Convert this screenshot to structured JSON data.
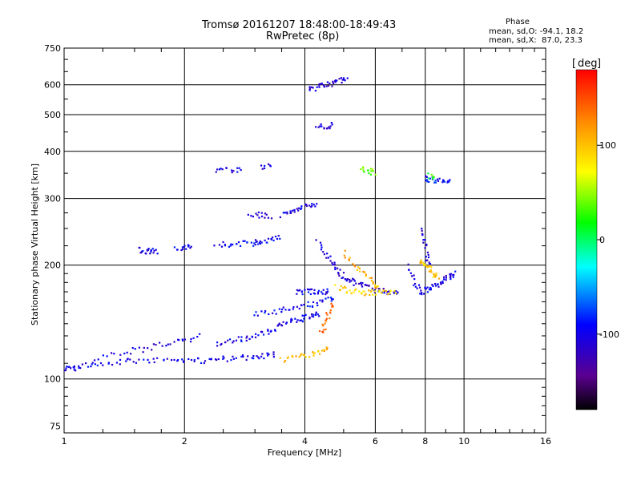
{
  "header": {
    "title_line1": "Tromsø 20161207 18:48:00-18:49:43",
    "title_line2": "RwPretec (8p)",
    "phase_heading": "Phase",
    "phase_line_o": "mean, sd,O: -94.1, 18.2",
    "phase_line_x": "mean, sd,X:  87.0, 23.3"
  },
  "colorbar": {
    "unit_label": "deg",
    "min": -180,
    "max": 180,
    "tick_labels": [
      "100",
      "0",
      "-100"
    ],
    "tick_values": [
      100,
      0,
      -100
    ]
  },
  "chart_data": {
    "type": "scatter",
    "xlabel": "Frequency [MHz]",
    "ylabel": "Stationary phase Virtual Height [km]",
    "x_scale": "log",
    "y_scale": "log",
    "xlim": [
      1,
      16
    ],
    "ylim": [
      72,
      750
    ],
    "x_ticks": [
      1,
      2,
      4,
      6,
      8,
      10,
      16
    ],
    "x_tick_labels": [
      "1",
      "2",
      "4",
      "6",
      "8",
      "10",
      "16"
    ],
    "y_ticks": [
      75,
      100,
      200,
      300,
      400,
      500,
      600,
      750
    ],
    "y_tick_labels": [
      "75",
      "100",
      "200",
      "300",
      "400",
      "500",
      "600",
      "750"
    ],
    "grid": true,
    "color_scale": "rainbow phase in degrees",
    "series": [
      {
        "name": "O",
        "mean_phase": -94.1,
        "sd_phase": 18.2
      },
      {
        "name": "X",
        "mean_phase": 87.0,
        "sd_phase": 23.3
      }
    ],
    "traces": [
      {
        "x": [
          1.0,
          1.05,
          1.1,
          1.2,
          1.35,
          1.5,
          1.7,
          1.9,
          2.1,
          2.3,
          2.5,
          2.75,
          3.0,
          3.2,
          3.4
        ],
        "y": [
          107,
          106,
          108,
          110,
          111,
          112,
          112,
          113,
          112,
          112,
          113,
          114,
          114,
          115,
          116
        ],
        "phase": -100
      },
      {
        "x": [
          1.2,
          1.4,
          1.6,
          1.8,
          2.0,
          2.2
        ],
        "y": [
          112,
          118,
          120,
          124,
          126,
          130
        ],
        "phase": -105
      },
      {
        "x": [
          2.4,
          2.6,
          2.8,
          3.0,
          3.2,
          3.4,
          3.6,
          3.8,
          4.0,
          4.2,
          4.4
        ],
        "y": [
          124,
          126,
          128,
          131,
          133,
          137,
          140,
          143,
          145,
          147,
          149
        ],
        "phase": -100
      },
      {
        "x": [
          3.0,
          3.3,
          3.6,
          3.9,
          4.2,
          4.5,
          4.8
        ],
        "y": [
          148,
          150,
          153,
          156,
          158,
          161,
          165
        ],
        "phase": -95
      },
      {
        "x": [
          3.8,
          4.0,
          4.2,
          4.4,
          4.6
        ],
        "y": [
          170,
          170,
          170,
          170,
          171
        ],
        "phase": -100
      },
      {
        "x": [
          4.3,
          4.5,
          4.7,
          4.9,
          5.1,
          5.3,
          5.6,
          5.9,
          6.2,
          6.5,
          6.9
        ],
        "y": [
          230,
          215,
          200,
          190,
          185,
          180,
          176,
          173,
          171,
          170,
          170
        ],
        "phase": -110
      },
      {
        "x": [
          5.0,
          5.3,
          5.6,
          5.9,
          6.2
        ],
        "y": [
          215,
          200,
          190,
          180,
          173
        ],
        "phase": 110
      },
      {
        "x": [
          4.8,
          5.1,
          5.4,
          5.7,
          6.0,
          6.4,
          6.8
        ],
        "y": [
          175,
          172,
          170,
          169,
          169,
          170,
          170
        ],
        "phase": 90
      },
      {
        "x": [
          3.5,
          3.8,
          4.1,
          4.4,
          4.6
        ],
        "y": [
          112,
          114,
          116,
          118,
          122
        ],
        "phase": 105
      },
      {
        "x": [
          4.4,
          4.5,
          4.6,
          4.7
        ],
        "y": [
          132,
          140,
          150,
          158
        ],
        "phase": 140
      },
      {
        "x": [
          7.2,
          7.5,
          7.8,
          8.1,
          8.4,
          8.7,
          9.0,
          9.3,
          9.5
        ],
        "y": [
          200,
          180,
          170,
          172,
          176,
          180,
          185,
          188,
          190
        ],
        "phase": -100
      },
      {
        "x": [
          7.9,
          8.0,
          8.1,
          8.2
        ],
        "y": [
          250,
          230,
          210,
          195
        ],
        "phase": -110
      },
      {
        "x": [
          7.8,
          8.0,
          8.2,
          8.4,
          8.6
        ],
        "y": [
          205,
          200,
          195,
          190,
          185
        ],
        "phase": 100
      },
      {
        "x": [
          1.55,
          1.6,
          1.65,
          1.7
        ],
        "y": [
          220,
          218,
          218,
          217
        ],
        "phase": -100
      },
      {
        "x": [
          1.9,
          2.0,
          2.1
        ],
        "y": [
          220,
          222,
          224
        ],
        "phase": -100
      },
      {
        "x": [
          2.4,
          2.6,
          2.8,
          3.0
        ],
        "y": [
          226,
          227,
          228,
          229
        ],
        "phase": -95
      },
      {
        "x": [
          3.0,
          3.1,
          3.3,
          3.5
        ],
        "y": [
          230,
          232,
          234,
          236
        ],
        "phase": -100
      },
      {
        "x": [
          2.9,
          3.1,
          3.3
        ],
        "y": [
          270,
          272,
          268
        ],
        "phase": -110
      },
      {
        "x": [
          3.5,
          3.7,
          3.9,
          4.1,
          4.3
        ],
        "y": [
          270,
          278,
          283,
          288,
          290
        ],
        "phase": -105
      },
      {
        "x": [
          2.4,
          2.6,
          2.8
        ],
        "y": [
          358,
          357,
          358
        ],
        "phase": -100
      },
      {
        "x": [
          3.1,
          3.3
        ],
        "y": [
          365,
          368
        ],
        "phase": -105
      },
      {
        "x": [
          4.1,
          4.3,
          4.5,
          4.7,
          4.9,
          5.1
        ],
        "y": [
          580,
          590,
          600,
          605,
          615,
          620
        ],
        "phase": -110
      },
      {
        "x": [
          4.3,
          4.5,
          4.7
        ],
        "y": [
          470,
          460,
          470
        ],
        "phase": -105
      },
      {
        "x": [
          5.5,
          5.8,
          6.0
        ],
        "y": [
          360,
          355,
          350
        ],
        "phase": 40
      },
      {
        "x": [
          8.0,
          8.3,
          8.6,
          9.0,
          9.3
        ],
        "y": [
          340,
          337,
          335,
          334,
          334
        ],
        "phase": -90
      },
      {
        "x": [
          8.2,
          8.4
        ],
        "y": [
          345,
          340
        ],
        "phase": 20
      }
    ]
  }
}
